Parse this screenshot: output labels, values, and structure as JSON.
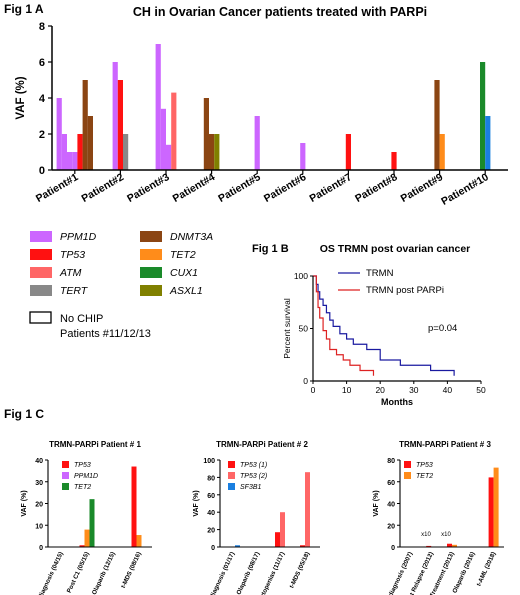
{
  "figure": {
    "fig1a_label": "Fig 1 A",
    "fig1b_label": "Fig 1 B",
    "fig1c_label": "Fig 1 C"
  },
  "colors": {
    "PPM1D": "#cc66ff",
    "TP53": "#ff1111",
    "ATM": "#ff6666",
    "TERT": "#888888",
    "DNMT3A": "#8b4513",
    "TET2": "#ff8c1a",
    "CUX1": "#1a8a2a",
    "ASXL1": "#808000",
    "SF3B1": "#1a7fe0",
    "TRMN": "#1a1aa0",
    "TRMN_PARPi": "#dd2222"
  },
  "legend": {
    "genes": [
      "PPM1D",
      "TP53",
      "ATM",
      "TERT",
      "DNMT3A",
      "TET2",
      "CUX1",
      "ASXL1"
    ],
    "no_chip_line1": "No CHIP",
    "no_chip_line2": "Patients #11/12/13"
  },
  "chart_data": [
    {
      "id": "fig1a",
      "type": "bar",
      "title": "CH in Ovarian Cancer patients treated with PARPi",
      "ylabel": "VAF (%)",
      "ylim": [
        0,
        8
      ],
      "yticks": [
        0,
        2,
        4,
        6,
        8
      ],
      "categories": [
        "Patient#1",
        "Patient#2",
        "Patient#3",
        "Patient#4",
        "Patient#5",
        "Patient#6",
        "Patient#7",
        "Patient#8",
        "Patient#9",
        "Patient#10"
      ],
      "bars": [
        [
          [
            "PPM1D",
            4.0
          ],
          [
            "PPM1D",
            2.0
          ],
          [
            "PPM1D",
            1.0
          ],
          [
            "PPM1D",
            1.0
          ],
          [
            "TP53",
            2.0
          ],
          [
            "DNMT3A",
            5.0
          ],
          [
            "DNMT3A",
            3.0
          ]
        ],
        [
          [
            "PPM1D",
            6.0
          ],
          [
            "TP53",
            5.0
          ],
          [
            "TERT",
            2.0
          ]
        ],
        [
          [
            "PPM1D",
            7.0
          ],
          [
            "PPM1D",
            3.4
          ],
          [
            "PPM1D",
            1.4
          ],
          [
            "ATM",
            4.3
          ]
        ],
        [
          [
            "DNMT3A",
            4.0
          ],
          [
            "DNMT3A",
            2.0
          ],
          [
            "ASXL1",
            2.0
          ]
        ],
        [
          [
            "PPM1D",
            3.0
          ]
        ],
        [
          [
            "PPM1D",
            1.5
          ]
        ],
        [
          [
            "TP53",
            2.0
          ]
        ],
        [
          [
            "TP53",
            1.0
          ]
        ],
        [
          [
            "DNMT3A",
            5.0
          ],
          [
            "TET2",
            2.0
          ]
        ],
        [
          [
            "CUX1",
            6.0
          ],
          [
            "SF3B1",
            3.0
          ]
        ]
      ]
    },
    {
      "id": "fig1b",
      "type": "line",
      "title": "OS TRMN post ovarian cancer",
      "xlabel": "Months",
      "ylabel": "Percent survival",
      "xlim": [
        0,
        50
      ],
      "ylim": [
        0,
        100
      ],
      "xticks": [
        0,
        10,
        20,
        30,
        40,
        50
      ],
      "yticks": [
        0,
        50,
        100
      ],
      "annotation": "p=0.04",
      "series": [
        {
          "name": "TRMN",
          "color_key": "TRMN",
          "x": [
            0,
            1,
            1.5,
            2,
            3,
            4,
            5,
            6,
            8,
            10,
            12,
            16,
            20,
            26,
            35,
            42
          ],
          "y": [
            100,
            92,
            85,
            78,
            72,
            65,
            58,
            52,
            45,
            40,
            35,
            30,
            20,
            15,
            10,
            5
          ]
        },
        {
          "name": "TRMN post PARPi",
          "color_key": "TRMN_PARPi",
          "x": [
            0,
            1,
            1.5,
            2,
            3,
            4,
            5,
            7,
            9,
            11,
            14,
            18
          ],
          "y": [
            100,
            85,
            70,
            60,
            48,
            40,
            30,
            25,
            20,
            15,
            10,
            5
          ]
        }
      ]
    },
    {
      "id": "fig1c_p1",
      "type": "bar",
      "title": "TRMN-PARPi Patient # 1",
      "ylabel": "VAF (%)",
      "ylim": [
        0,
        40
      ],
      "yticks": [
        0,
        10,
        20,
        30,
        40
      ],
      "categories": [
        "Cancer diagnosis (04/15)",
        "Post C1 (05/15)",
        "Olaparib (12/15)",
        "t-MDS (08/16)"
      ],
      "legend": [
        [
          "TP53",
          "TP53"
        ],
        [
          "PPM1D",
          "PPM1D"
        ],
        [
          "TET2",
          "CUX1"
        ]
      ],
      "series": [
        {
          "name": "TP53",
          "color_key": "TP53",
          "values": [
            0,
            0.8,
            0,
            37
          ]
        },
        {
          "name": "PPM1D",
          "color_key": "TET2",
          "values": [
            0,
            8,
            0,
            5.5
          ]
        },
        {
          "name": "TET2",
          "color_key": "CUX1",
          "values": [
            0,
            22,
            0,
            0
          ]
        }
      ]
    },
    {
      "id": "fig1c_p2",
      "type": "bar",
      "title": "TRMN-PARPi  Patient # 2",
      "ylabel": "VAF (%)",
      "ylim": [
        0,
        100
      ],
      "yticks": [
        0,
        20,
        40,
        60,
        80,
        100
      ],
      "categories": [
        "Cancer diagnosis (01/17)",
        "Olaparib (08/17)",
        "Cytopenias (11/17)",
        "t-MDS (05/18)"
      ],
      "legend": [
        [
          "TP53 (1)",
          "TP53"
        ],
        [
          "TP53 (2)",
          "ATM"
        ],
        [
          "SF3B1",
          "SF3B1"
        ]
      ],
      "series": [
        {
          "name": "TP53 (1)",
          "color_key": "TP53",
          "values": [
            0,
            0,
            17,
            2
          ]
        },
        {
          "name": "TP53 (2)",
          "color_key": "ATM",
          "values": [
            0,
            0,
            40,
            86
          ]
        },
        {
          "name": "SF3B1",
          "color_key": "SF3B1",
          "values": [
            2,
            0,
            0,
            0
          ]
        }
      ]
    },
    {
      "id": "fig1c_p3",
      "type": "bar",
      "title": "TRMN-PARPi Patient # 3",
      "ylabel": "VAF (%)",
      "ylim": [
        0,
        80
      ],
      "yticks": [
        0,
        20,
        40,
        60,
        80
      ],
      "categories": [
        "Cancer diagnosis (2007)",
        "First Relapse (2012)",
        "Post FR Treatment (2013)",
        "Olaparib (2016)",
        "t-AML (2018)"
      ],
      "legend": [
        [
          "TP53",
          "TP53"
        ],
        [
          "TET2",
          "TET2"
        ]
      ],
      "annotations": [
        "x10",
        "x10"
      ],
      "series": [
        {
          "name": "TP53",
          "color_key": "TP53",
          "values": [
            0,
            1,
            3,
            0,
            64
          ]
        },
        {
          "name": "TET2",
          "color_key": "TET2",
          "values": [
            0,
            0,
            2,
            0,
            73
          ]
        }
      ]
    }
  ]
}
